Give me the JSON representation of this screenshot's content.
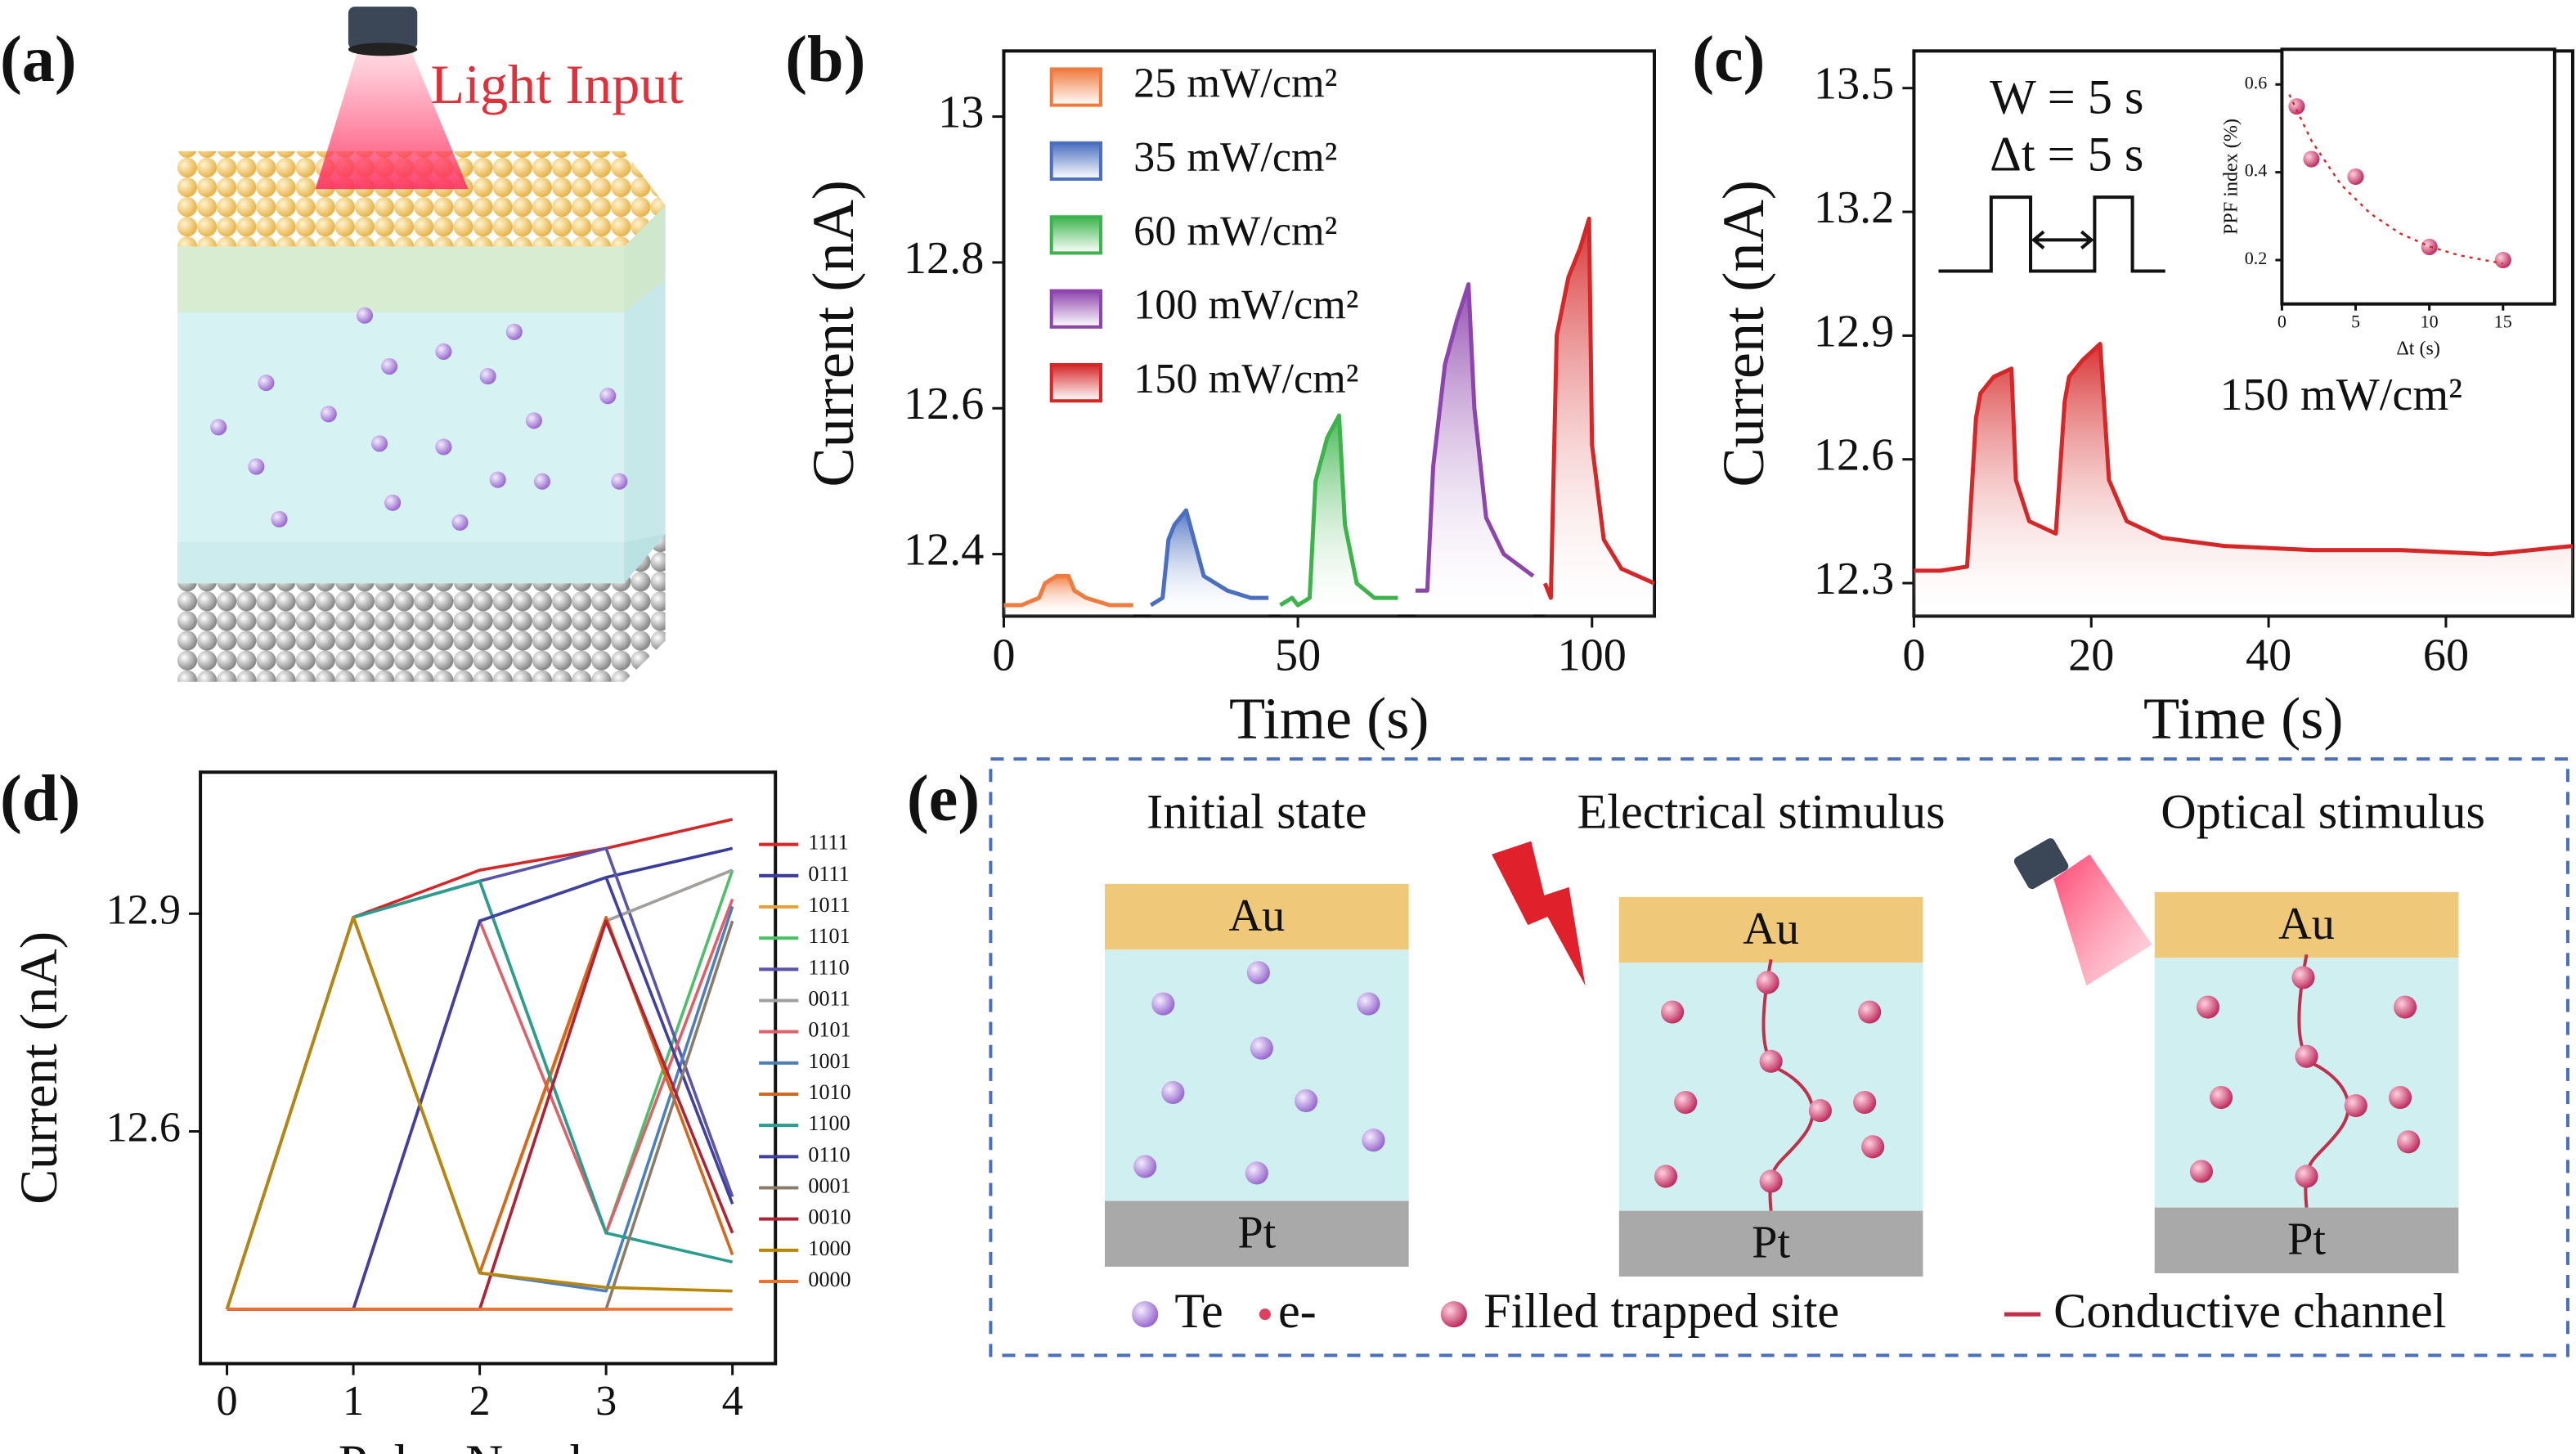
{
  "panel_a": {
    "label": "(a)",
    "light_label": "Light Input"
  },
  "chart_data": [
    {
      "type": "line",
      "panel_label": "(b)",
      "xlabel": "Time (s)",
      "ylabel": "Current (nA)",
      "xlim": [
        0,
        110.6
      ],
      "ylim": [
        12.315,
        13.09
      ],
      "xticks": [
        0,
        50,
        100
      ],
      "yticks": [
        12.4,
        12.6,
        12.8,
        13.0
      ],
      "fill": true,
      "legend": "upper left",
      "series": [
        {
          "name": "25 mW/cm²",
          "color": "#f07b3f",
          "x": [
            0,
            3,
            6,
            7,
            9,
            11,
            12,
            14,
            18,
            22
          ],
          "values": [
            12.33,
            12.33,
            12.34,
            12.36,
            12.37,
            12.37,
            12.35,
            12.34,
            12.33,
            12.33
          ]
        },
        {
          "name": "35 mW/cm²",
          "color": "#4a6fc0",
          "x": [
            25,
            27,
            28,
            29,
            31,
            32,
            34,
            38,
            42,
            45
          ],
          "values": [
            12.33,
            12.34,
            12.42,
            12.44,
            12.46,
            12.43,
            12.37,
            12.35,
            12.34,
            12.34
          ]
        },
        {
          "name": "60 mW/cm²",
          "color": "#3cb44b",
          "x": [
            47,
            49,
            50,
            52,
            53,
            55,
            57,
            58,
            60,
            63,
            67
          ],
          "values": [
            12.33,
            12.34,
            12.33,
            12.34,
            12.5,
            12.56,
            12.59,
            12.44,
            12.36,
            12.34,
            12.34
          ]
        },
        {
          "name": "100 mW/cm²",
          "color": "#8e44ad",
          "x": [
            70,
            72,
            73,
            75,
            77,
            79,
            80,
            82,
            85,
            90
          ],
          "values": [
            12.35,
            12.35,
            12.52,
            12.66,
            12.72,
            12.77,
            12.6,
            12.45,
            12.4,
            12.37
          ]
        },
        {
          "name": "150 mW/cm²",
          "color": "#d62728",
          "x": [
            92,
            93,
            94,
            96,
            98,
            99.5,
            100,
            102,
            105,
            110.6
          ],
          "values": [
            12.36,
            12.34,
            12.7,
            12.78,
            12.82,
            12.86,
            12.55,
            12.42,
            12.38,
            12.36
          ]
        }
      ]
    },
    {
      "type": "line",
      "panel_label": "(c)",
      "xlabel": "Time (s)",
      "ylabel": "Current (nA)",
      "xlim": [
        0,
        74.3
      ],
      "ylim": [
        12.22,
        13.59
      ],
      "xticks": [
        0,
        20,
        40,
        60
      ],
      "yticks": [
        12.3,
        12.6,
        12.9,
        13.2,
        13.5
      ],
      "fill": true,
      "annotations": [
        "W = 5 s",
        "Δt = 5 s",
        "150 mW/cm²"
      ],
      "series": [
        {
          "color": "#d62728",
          "x": [
            0,
            3,
            6,
            7,
            7.5,
            9,
            11,
            11.5,
            13,
            16,
            17,
            17.5,
            19,
            21,
            22,
            24,
            28,
            35,
            45,
            55,
            65,
            74.3
          ],
          "values": [
            12.33,
            12.33,
            12.34,
            12.7,
            12.76,
            12.8,
            12.82,
            12.55,
            12.45,
            12.42,
            12.74,
            12.8,
            12.84,
            12.88,
            12.55,
            12.45,
            12.41,
            12.39,
            12.38,
            12.38,
            12.37,
            12.39
          ]
        }
      ]
    },
    {
      "type": "scatter",
      "xlabel": "Δt (s)",
      "ylabel": "PPF index (%)",
      "xlim": [
        0,
        18.5
      ],
      "ylim": [
        0.1,
        0.68
      ],
      "xticks": [
        0,
        5,
        10,
        15
      ],
      "yticks": [
        0.2,
        0.4,
        0.6
      ],
      "series": [
        {
          "color": "#d62728",
          "x": [
            1,
            2,
            5,
            10,
            15
          ],
          "values": [
            0.55,
            0.43,
            0.39,
            0.23,
            0.2
          ]
        },
        {
          "color": "#d62728",
          "mode": "dotted-line",
          "x": [
            0.5,
            2,
            4,
            6,
            8,
            10,
            12,
            15
          ],
          "values": [
            0.577,
            0.472,
            0.372,
            0.306,
            0.261,
            0.231,
            0.211,
            0.192
          ]
        }
      ]
    },
    {
      "type": "line",
      "panel_label": "(d)",
      "xlabel": "Pulse Number",
      "ylabel": "Current (nA)",
      "xlim": [
        -0.21,
        4.34
      ],
      "ylim": [
        12.28,
        13.095
      ],
      "xticks": [
        0,
        1,
        2,
        3,
        4
      ],
      "yticks": [
        12.6,
        12.9
      ],
      "legend": "outside right",
      "x": [
        0,
        1,
        2,
        3,
        4
      ],
      "series": [
        {
          "name": "1111",
          "color": "#d62728",
          "values": [
            12.355,
            12.895,
            12.96,
            12.99,
            13.03
          ]
        },
        {
          "name": "0111",
          "color": "#3b3b9e",
          "values": [
            12.355,
            12.355,
            12.89,
            12.95,
            12.99
          ]
        },
        {
          "name": "1011",
          "color": "#e8a23a",
          "values": [
            12.355,
            12.895,
            12.405,
            12.89,
            12.96
          ]
        },
        {
          "name": "1101",
          "color": "#4dbf6a",
          "values": [
            12.355,
            12.895,
            12.945,
            12.46,
            12.96
          ]
        },
        {
          "name": "1110",
          "color": "#5a55a8",
          "values": [
            12.355,
            12.895,
            12.945,
            12.99,
            12.51
          ]
        },
        {
          "name": "0011",
          "color": "#a0a0a0",
          "values": [
            12.355,
            12.355,
            12.355,
            12.89,
            12.96
          ]
        },
        {
          "name": "0101",
          "color": "#e0606a",
          "values": [
            12.355,
            12.355,
            12.89,
            12.46,
            12.92
          ]
        },
        {
          "name": "1001",
          "color": "#4a7fc0",
          "values": [
            12.355,
            12.895,
            12.405,
            12.38,
            12.91
          ]
        },
        {
          "name": "1010",
          "color": "#d2691e",
          "values": [
            12.355,
            12.895,
            12.405,
            12.895,
            12.43
          ]
        },
        {
          "name": "1100",
          "color": "#2a9d8f",
          "values": [
            12.355,
            12.895,
            12.945,
            12.46,
            12.42
          ]
        },
        {
          "name": "0110",
          "color": "#4040a0",
          "values": [
            12.355,
            12.355,
            12.89,
            12.95,
            12.5
          ]
        },
        {
          "name": "0001",
          "color": "#8c7b6b",
          "values": [
            12.355,
            12.355,
            12.355,
            12.355,
            12.89
          ]
        },
        {
          "name": "0010",
          "color": "#b22234",
          "values": [
            12.355,
            12.355,
            12.355,
            12.89,
            12.46
          ]
        },
        {
          "name": "1000",
          "color": "#b8860b",
          "values": [
            12.355,
            12.895,
            12.405,
            12.385,
            12.38
          ]
        },
        {
          "name": "0000",
          "color": "#f07030",
          "values": [
            12.355,
            12.355,
            12.355,
            12.355,
            12.355
          ]
        }
      ]
    }
  ],
  "panel_e": {
    "label": "(e)",
    "columns": [
      {
        "title": "Initial state",
        "top": "Au",
        "bottom": "Pt"
      },
      {
        "title": "Electrical stimulus",
        "top": "Au",
        "bottom": "Pt"
      },
      {
        "title": "Optical stimulus",
        "top": "Au",
        "bottom": "Pt"
      }
    ],
    "legend": [
      "Te",
      "e-",
      "Filled trapped site",
      "Conductive channel"
    ]
  }
}
